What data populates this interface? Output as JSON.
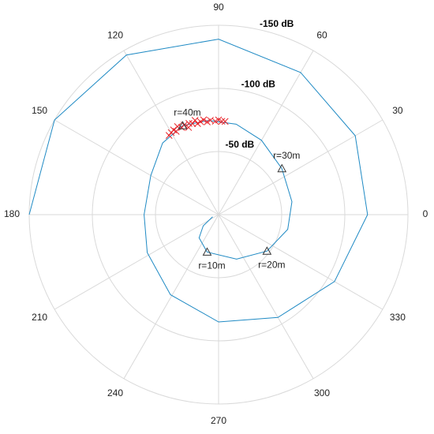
{
  "chart_data": {
    "type": "polar",
    "thetaticks": [
      0,
      30,
      60,
      90,
      120,
      150,
      180,
      210,
      240,
      270,
      300,
      330
    ],
    "rlim": [
      0,
      -150
    ],
    "rticks": [
      {
        "value": -50,
        "label": "-50 dB"
      },
      {
        "value": -100,
        "label": "-100 dB"
      },
      {
        "value": -150,
        "label": "-150 dB"
      }
    ],
    "grid": true,
    "series": [
      {
        "color": "#1f8ac4",
        "marker": "line",
        "theta": [
          200,
          216,
          230,
          253,
          292,
          323,
          348,
          370,
          396,
          420,
          439,
          456,
          472,
          488,
          510,
          540,
          568,
          599,
          630,
          660,
          690,
          720,
          750,
          780,
          810,
          840,
          870,
          900
        ],
        "values": [
          -5,
          -15,
          -24,
          -31,
          -38,
          -48,
          -56,
          -59,
          -62,
          -68,
          -73,
          -75,
          -76,
          -72,
          -62,
          -59,
          -64,
          -74,
          -85,
          -94,
          -106,
          -118,
          -125,
          -130,
          -139,
          -146,
          -150,
          -150
        ]
      },
      {
        "color": "#e8242a",
        "marker": "x",
        "theta": [
          86,
          88,
          90,
          92,
          95,
          97,
          99,
          101,
          103,
          104,
          106,
          108,
          109,
          111,
          113,
          115,
          117,
          118,
          120,
          122
        ],
        "values": [
          -74,
          -74,
          -75,
          -74,
          -75,
          -74,
          -76,
          -75,
          -74,
          -77,
          -75,
          -76,
          -73,
          -76,
          -75,
          -77,
          -74,
          -76,
          -75,
          -74
        ]
      }
    ],
    "annotations": [
      {
        "text": "r=10m",
        "theta": 253,
        "value": -31
      },
      {
        "text": "r=20m",
        "theta": 323,
        "value": -48
      },
      {
        "text": "r=30m",
        "theta": 36,
        "value": -62
      },
      {
        "text": "r=40m",
        "theta": 112,
        "value": -76
      }
    ]
  }
}
